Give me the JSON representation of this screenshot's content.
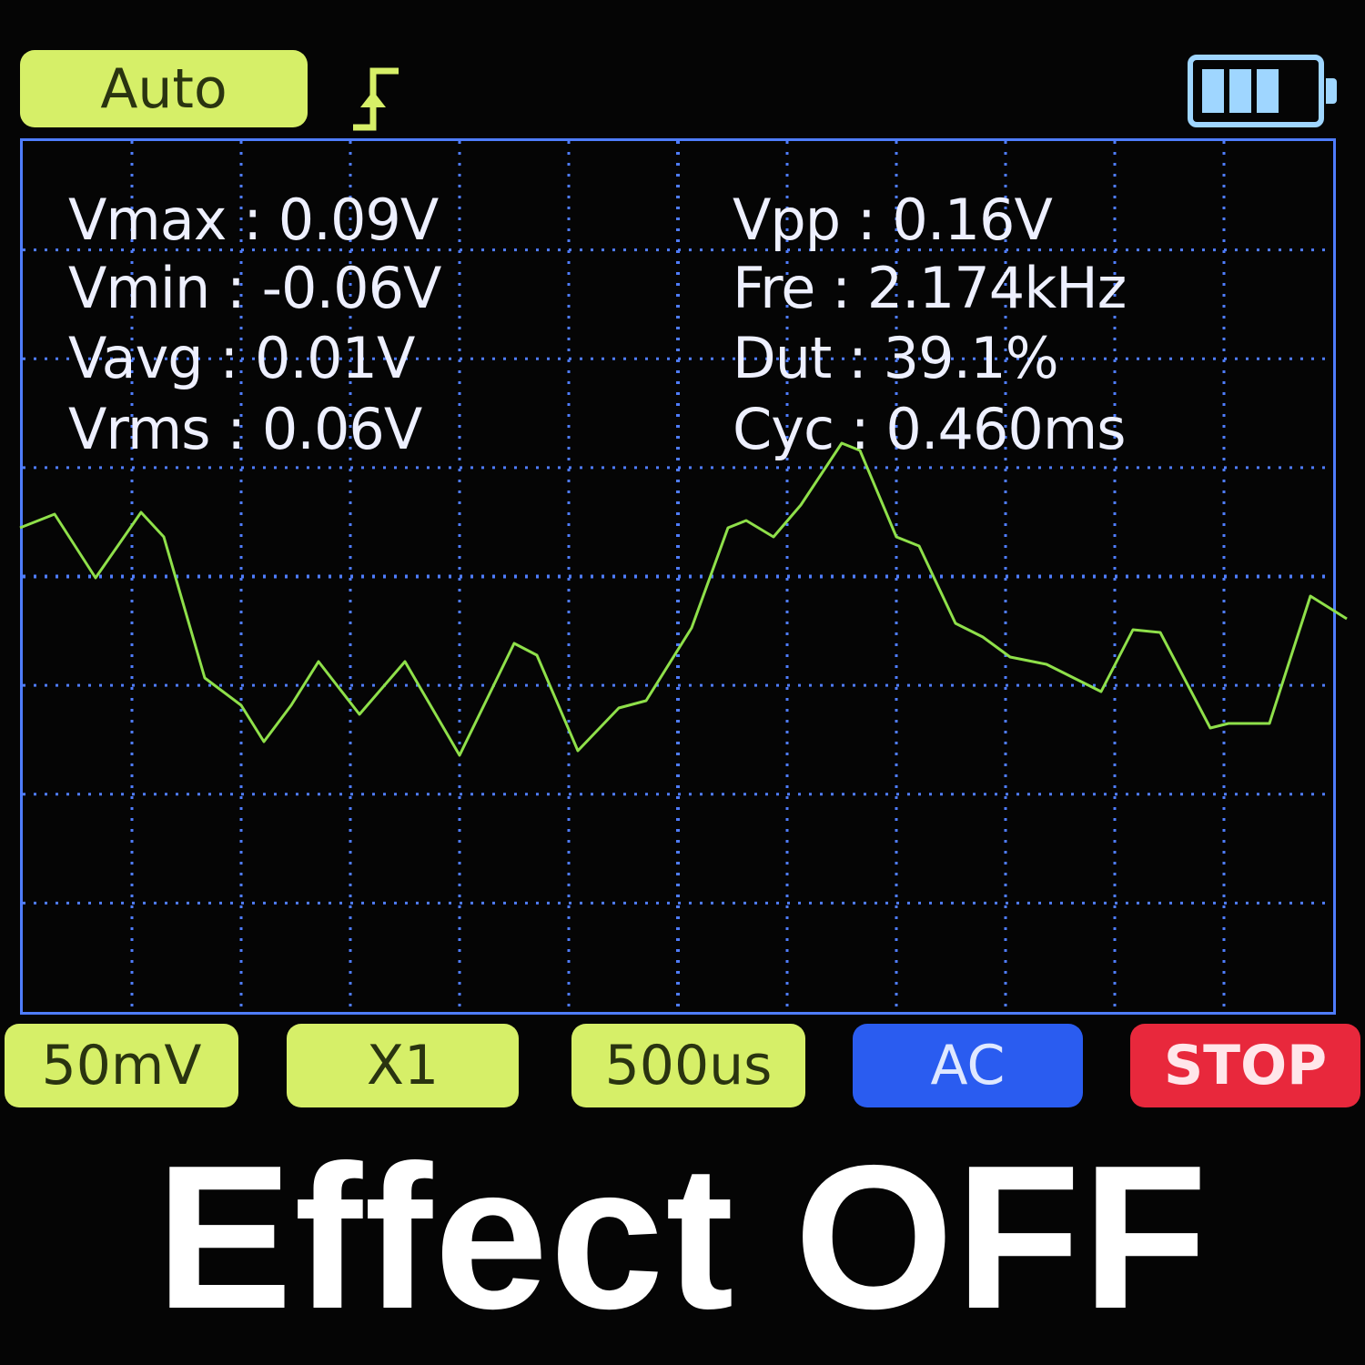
{
  "top_bar": {
    "trigger_mode": "Auto",
    "trigger_icon": "rising-edge-trigger-icon",
    "battery_icon": "battery-icon",
    "battery_level": 0.75
  },
  "measurements": {
    "left": [
      {
        "label": "Vmax : 0.09V"
      },
      {
        "label": "Vmin : -0.06V"
      },
      {
        "label": "Vavg : 0.01V"
      },
      {
        "label": "Vrms : 0.06V"
      }
    ],
    "right": [
      {
        "label": "Vpp : 0.16V"
      },
      {
        "label": "Fre : 2.174kHz"
      },
      {
        "label": "Dut : 39.1%"
      },
      {
        "label": "Cyc : 0.460ms"
      }
    ]
  },
  "colors": {
    "trace": "#8fe04a",
    "grid": "#4f7dff",
    "accent": "#d6ef68",
    "ac": "#2a5cf0",
    "stop": "#e8283c"
  },
  "bottom_bar": {
    "volts_div": "50mV",
    "probe": "X1",
    "time_div": "500us",
    "coupling": "AC",
    "run_state": "STOP"
  },
  "caption": "Effect OFF"
}
